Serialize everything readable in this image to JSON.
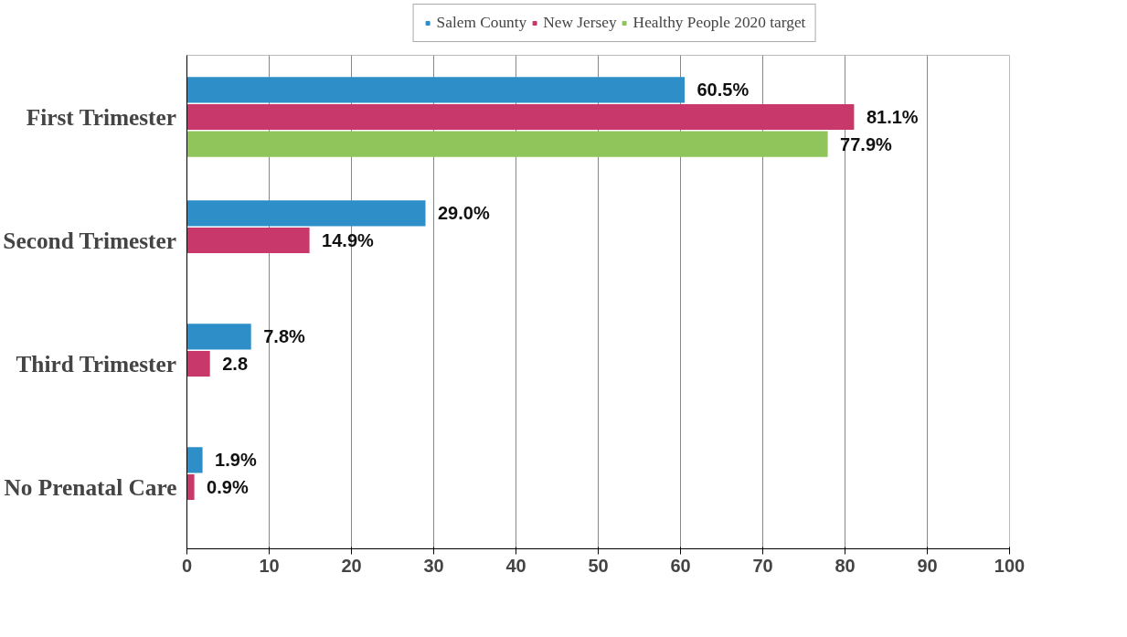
{
  "chart_data": {
    "type": "bar",
    "orientation": "horizontal",
    "categories": [
      "First Trimester",
      "Second Trimester",
      "Third Trimester",
      "No Prenatal Care"
    ],
    "series": [
      {
        "name": "Salem County",
        "color": "#2e8fc8",
        "values": [
          60.5,
          29.0,
          7.8,
          1.9
        ],
        "value_labels": [
          "60.5%",
          "29.0%",
          "7.8%",
          "1.9%"
        ]
      },
      {
        "name": "New Jersey",
        "color": "#c8386a",
        "values": [
          81.1,
          14.9,
          2.8,
          0.9
        ],
        "value_labels": [
          "81.1%",
          "14.9%",
          "2.8",
          "0.9%"
        ]
      },
      {
        "name": "Healthy People 2020 target",
        "color": "#8fc55a",
        "values": [
          77.9,
          null,
          null,
          null
        ],
        "value_labels": [
          "77.9%",
          null,
          null,
          null
        ]
      }
    ],
    "xlim": [
      0,
      100
    ],
    "xticks": [
      0,
      10,
      20,
      30,
      40,
      50,
      60,
      70,
      80,
      90,
      100
    ],
    "grid": "x",
    "legend": "top"
  }
}
